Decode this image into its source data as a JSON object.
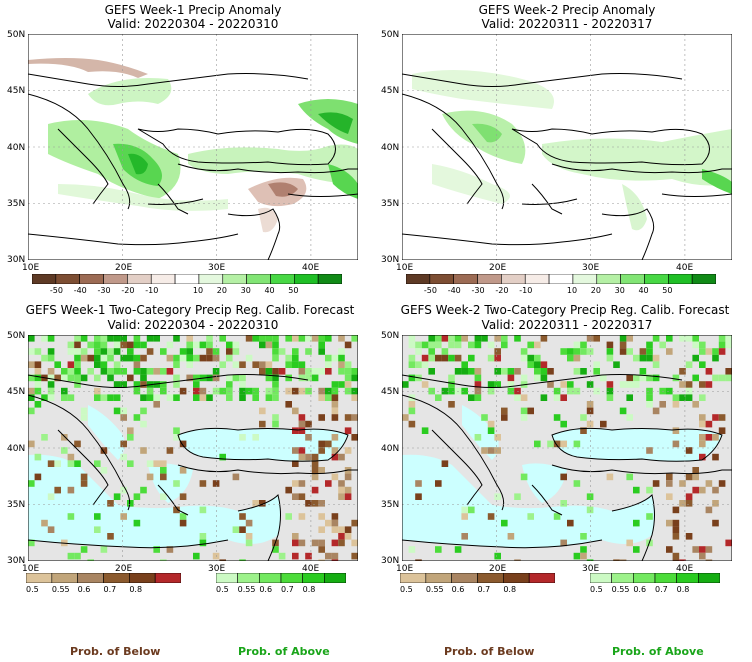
{
  "panels": [
    {
      "title": "GEFS Week-1 Precip Anomaly",
      "valid": "Valid: 20220304 - 20220310"
    },
    {
      "title": "GEFS Week-2 Precip Anomaly",
      "valid": "Valid: 20220311 - 20220317"
    },
    {
      "title": "GEFS Week-1 Two-Category Precip Reg. Calib. Forecast",
      "valid": "Valid: 20220304 - 20220310"
    },
    {
      "title": "GEFS Week-2 Two-Category Precip Reg. Calib. Forecast",
      "valid": "Valid: 20220311 - 20220317"
    }
  ],
  "axes": {
    "lat_labels": [
      "50N",
      "45N",
      "40N",
      "35N",
      "30N"
    ],
    "lon_labels": [
      "10E",
      "20E",
      "30E",
      "40E"
    ]
  },
  "anomaly_colorbar": {
    "labels": [
      "-50",
      "-40",
      "-30",
      "-20",
      "-10",
      "10",
      "20",
      "30",
      "40",
      "50"
    ],
    "colors": [
      "#5e3a25",
      "#7d4e33",
      "#9c6b54",
      "#c0998a",
      "#e3cfc6",
      "#f6ece7",
      "#ffffff",
      "#e4f8de",
      "#b5f0a5",
      "#82e575",
      "#48d845",
      "#1fbf26",
      "#108a17"
    ]
  },
  "prob_below_colorbar": {
    "labels": [
      "0.5",
      "0.55",
      "0.6",
      "0.7",
      "0.8"
    ],
    "colors": [
      "#dcc39a",
      "#c1a57a",
      "#a98562",
      "#8b5a2e",
      "#79401c",
      "#b4282a"
    ]
  },
  "prob_above_colorbar": {
    "labels": [
      "0.5",
      "0.55",
      "0.6",
      "0.7",
      "0.8"
    ],
    "colors": [
      "#ccfac4",
      "#9df28b",
      "#73e960",
      "#4cdc3a",
      "#2acc20",
      "#15ad12"
    ]
  },
  "legend": {
    "below": "Prob. of Below",
    "above": "Prob. of Above"
  },
  "colors": {
    "prob_below_text": "#6b3a1f",
    "prob_above_text": "#1aa51a",
    "sea_prob": "#ccffff",
    "land_prob": "#e5e5e5"
  }
}
